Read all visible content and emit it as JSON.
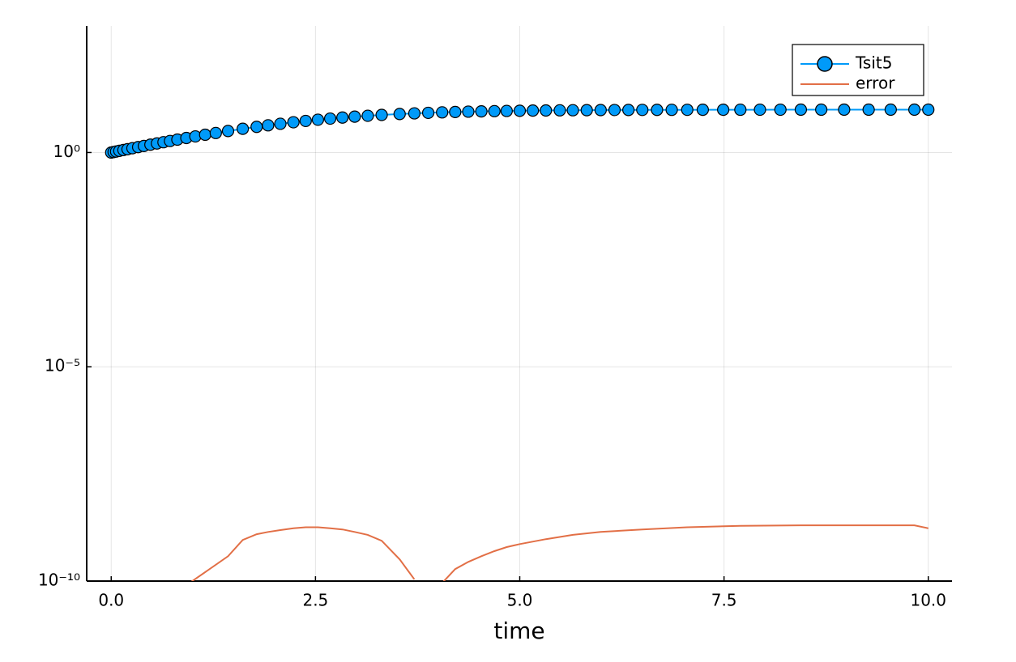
{
  "chart_data": {
    "type": "line",
    "xlabel": "time",
    "xlim": [
      -0.3,
      10.29
    ],
    "ylim": [
      1e-10,
      900
    ],
    "yscale": "log",
    "xticks": [
      {
        "value": 0,
        "label": "0.0"
      },
      2.5,
      {
        "value": 5,
        "label": "5.0"
      },
      7.5,
      {
        "value": 10,
        "label": "10.0"
      }
    ],
    "yticks": [
      {
        "value": 1e-10,
        "label": "10⁻¹⁰"
      },
      {
        "value": 1e-05,
        "label": "10⁻⁵"
      },
      {
        "value": 1,
        "label": "10⁰"
      }
    ],
    "grid": true,
    "legend": "top-right",
    "series": [
      {
        "name": "Tsit5",
        "color": "#009af9",
        "marker": "circle",
        "x": [
          0,
          0.03,
          0.06,
          0.1,
          0.15,
          0.2,
          0.26,
          0.33,
          0.4,
          0.48,
          0.56,
          0.64,
          0.72,
          0.81,
          0.92,
          1.03,
          1.15,
          1.28,
          1.43,
          1.61,
          1.78,
          1.92,
          2.07,
          2.23,
          2.38,
          2.53,
          2.68,
          2.83,
          2.98,
          3.14,
          3.31,
          3.53,
          3.71,
          3.88,
          4.05,
          4.21,
          4.37,
          4.53,
          4.69,
          4.84,
          5.0,
          5.16,
          5.32,
          5.49,
          5.65,
          5.82,
          5.99,
          6.16,
          6.33,
          6.5,
          6.68,
          6.86,
          7.05,
          7.24,
          7.49,
          7.7,
          7.94,
          8.19,
          8.44,
          8.69,
          8.97,
          9.27,
          9.54,
          9.83,
          10
        ],
        "values": [
          1,
          1.027,
          1.055,
          1.094,
          1.143,
          1.195,
          1.259,
          1.339,
          1.422,
          1.522,
          1.628,
          1.74,
          1.858,
          1.998,
          2.18,
          2.374,
          2.598,
          2.855,
          3.171,
          3.573,
          3.973,
          4.312,
          4.682,
          5.081,
          5.455,
          5.824,
          6.183,
          6.531,
          6.863,
          7.194,
          7.526,
          7.913,
          8.193,
          8.43,
          8.646,
          8.825,
          8.982,
          9.114,
          9.235,
          9.336,
          9.428,
          9.508,
          9.579,
          9.641,
          9.694,
          9.74,
          9.78,
          9.814,
          9.843,
          9.867,
          9.888,
          9.906,
          9.922,
          9.935,
          9.95,
          9.959,
          9.968,
          9.975,
          9.98,
          9.985,
          9.989,
          9.992,
          9.994,
          9.995,
          9.996
        ]
      },
      {
        "name": "error",
        "color": "#e26f46",
        "marker": "none",
        "x": [
          0.92,
          1.43,
          1.61,
          1.78,
          1.92,
          2.07,
          2.23,
          2.38,
          2.53,
          2.68,
          2.83,
          2.98,
          3.14,
          3.31,
          3.53,
          3.71,
          3.88,
          4.05,
          4.21,
          4.37,
          4.53,
          4.69,
          4.84,
          5.0,
          5.32,
          5.65,
          5.99,
          6.5,
          7.05,
          7.7,
          8.44,
          9.27,
          9.54,
          9.83,
          10
        ],
        "values": [
          8e-11,
          3.8e-10,
          9.1e-10,
          1.24e-09,
          1.4e-09,
          1.55e-09,
          1.7e-09,
          1.8e-09,
          1.8e-09,
          1.7e-09,
          1.6e-09,
          1.4e-09,
          1.2e-09,
          8.7e-10,
          3.2e-10,
          1.1e-10,
          null,
          9e-11,
          1.9e-10,
          2.8e-10,
          3.8e-10,
          5e-10,
          6.2e-10,
          7.3e-10,
          9.5e-10,
          1.2e-09,
          1.4e-09,
          1.6e-09,
          1.8e-09,
          1.95e-09,
          2e-09,
          2e-09,
          2e-09,
          2e-09,
          1.7e-09
        ]
      }
    ]
  }
}
